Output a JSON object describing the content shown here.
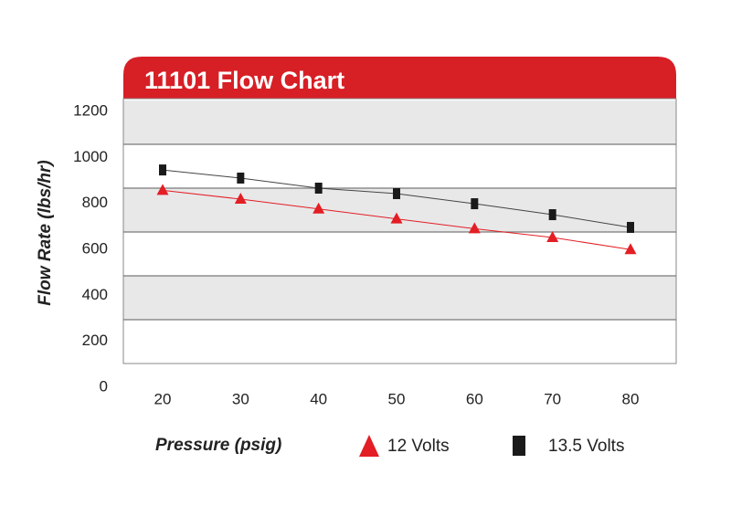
{
  "chart_data": {
    "type": "line",
    "title": "11101 Flow Chart",
    "x_label": "Pressure (psig)",
    "y_label": "Flow Rate (lbs/hr)",
    "x": [
      20,
      30,
      40,
      50,
      60,
      70,
      80
    ],
    "series": [
      {
        "name": "12 Volts",
        "color": "#e31e24",
        "marker": "triangle",
        "values": [
          790,
          750,
          705,
          660,
          615,
          575,
          520
        ]
      },
      {
        "name": "13.5 Volts",
        "color": "#1a1a1a",
        "marker": "square",
        "values": [
          883,
          846,
          800,
          775,
          729,
          679,
          621
        ]
      }
    ],
    "xlim": [
      20,
      80
    ],
    "xticks": [
      20,
      30,
      40,
      50,
      60,
      70,
      80
    ],
    "ylim": [
      0,
      1200
    ],
    "yticks": [
      0,
      200,
      400,
      600,
      800,
      1000,
      1200
    ],
    "header_color": "#d71f26",
    "grid": true
  }
}
